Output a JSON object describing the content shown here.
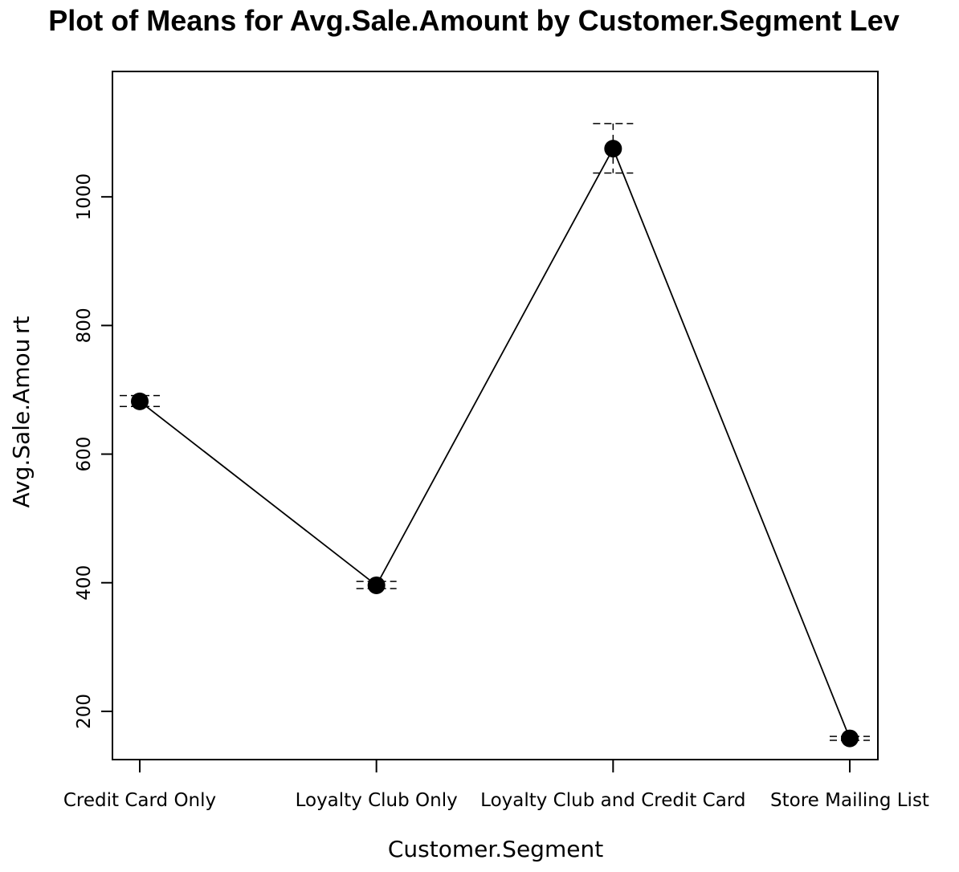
{
  "chart_data": {
    "type": "line",
    "title": "Plot of Means for Avg.Sale.Amount by Customer.Segment Lev",
    "xlabel": "Customer.Segment",
    "ylabel": "Avg.Sale.Amou rt",
    "categories": [
      "Credit Card Only",
      "Loyalty Club Only",
      "Loyalty Club and Credit Card",
      "Store Mailing List"
    ],
    "series": [
      {
        "values": [
          682,
          396,
          1075,
          158
        ],
        "error_low": [
          674,
          391,
          1037,
          155
        ],
        "error_high": [
          691,
          402,
          1114,
          161
        ]
      }
    ],
    "y_ticks": [
      200,
      400,
      600,
      800,
      1000
    ],
    "ylim": [
      125,
      1195
    ],
    "grid": false,
    "legend": "none"
  }
}
